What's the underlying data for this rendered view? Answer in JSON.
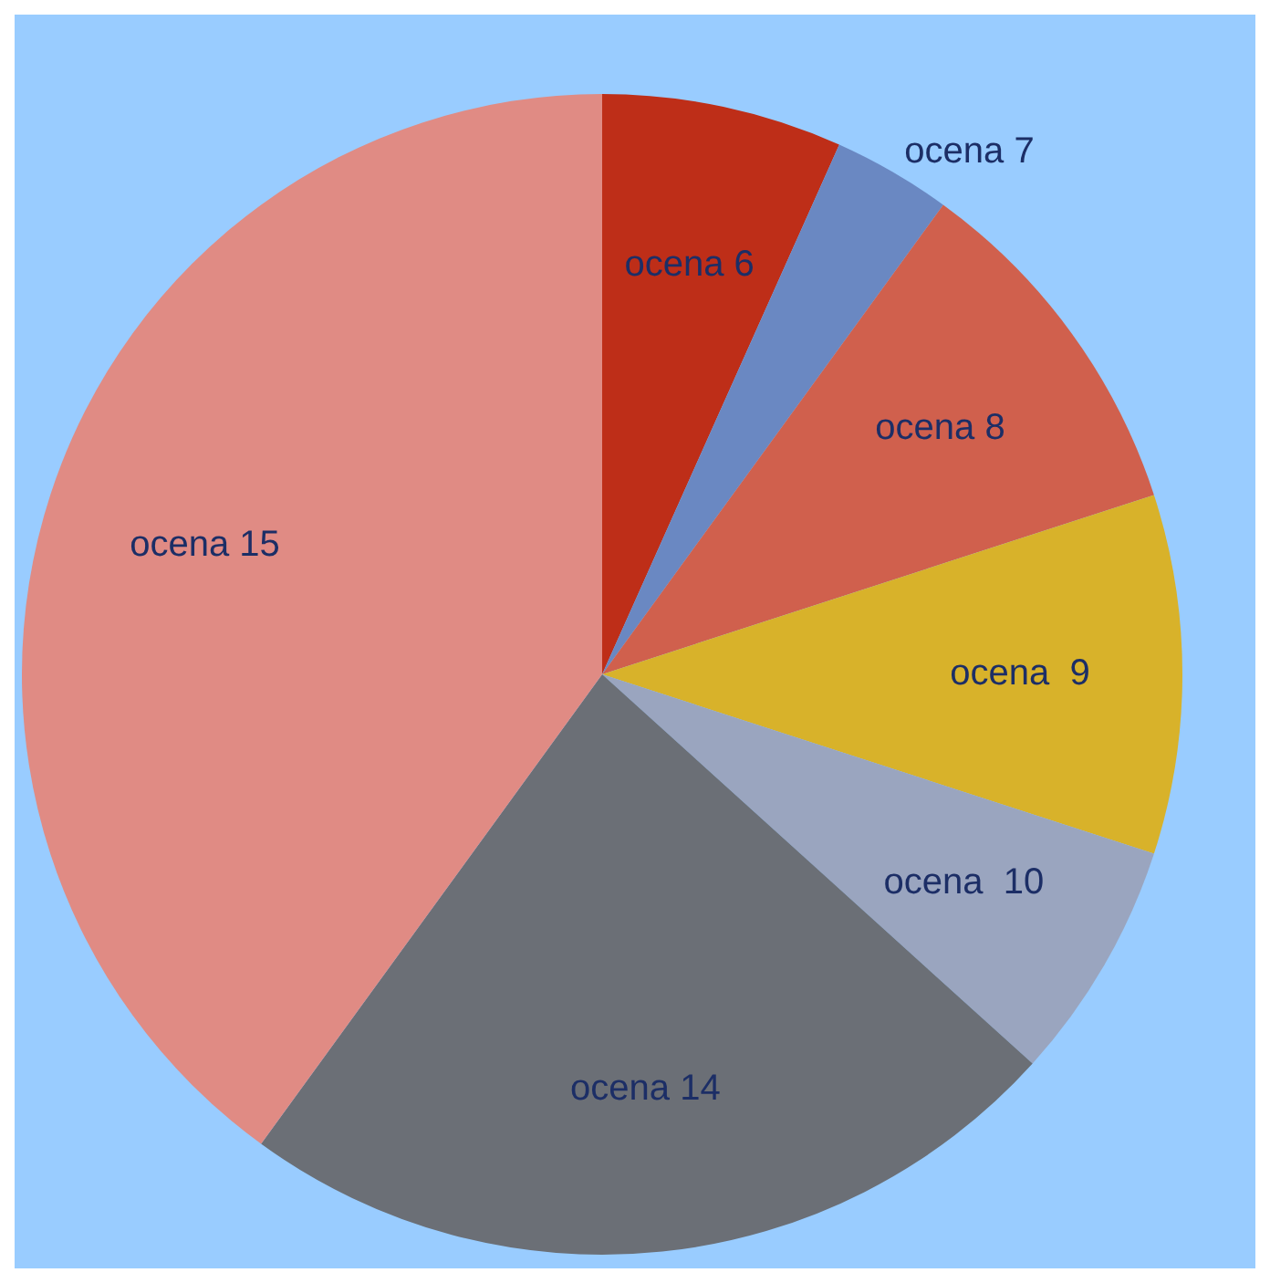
{
  "chart_data": {
    "type": "pie",
    "categories": [
      "ocena 6",
      "ocena 7",
      "ocena 8",
      "ocena  9",
      "ocena  10",
      "ocena 14",
      "ocena 15"
    ],
    "values": [
      6.7,
      3.3,
      10,
      10,
      6.7,
      23.3,
      40
    ],
    "colors": [
      "#be2e18",
      "#6a88c2",
      "#d0604d",
      "#d8b22a",
      "#9aa5bf",
      "#6b6f76",
      "#e08b84"
    ]
  }
}
